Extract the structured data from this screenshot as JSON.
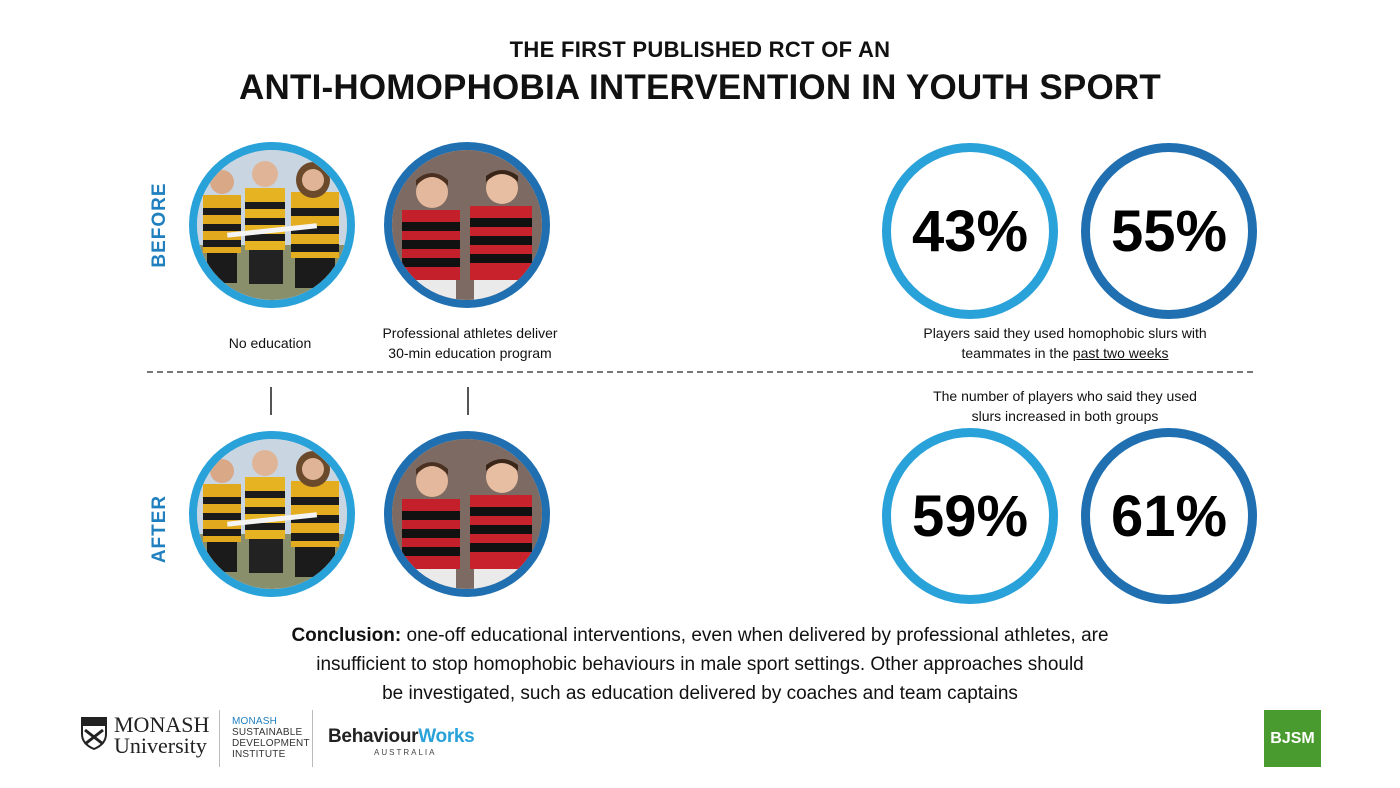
{
  "header": {
    "subtitle": "THE FIRST PUBLISHED RCT OF AN",
    "title": "ANTI-HOMOPHOBIA INTERVENTION IN YOUTH SPORT"
  },
  "labels": {
    "before": "BEFORE",
    "after": "AFTER"
  },
  "groups": {
    "control_caption": "No education",
    "intervention_caption_line1": "Professional athletes deliver",
    "intervention_caption_line2": "30-min education program"
  },
  "stats": {
    "before_control": "43%",
    "before_intervention": "55%",
    "after_control": "59%",
    "after_intervention": "61%",
    "before_note_line1": "Players said they used homophobic slurs with",
    "before_note_line2_prefix": "teammates in the ",
    "before_note_line2_underlined": "past two weeks",
    "after_note_line1": "The number of players who said they used",
    "after_note_line2": "slurs increased in both groups"
  },
  "conclusion": {
    "label": "Conclusion:",
    "line1": " one-off educational interventions, even when delivered by professional athletes, are",
    "line2": "insufficient to stop homophobic behaviours in male sport settings. Other approaches should",
    "line3": "be investigated, such as education delivered by coaches and team captains"
  },
  "footer": {
    "monash_line1": "MONASH",
    "monash_line2": "University",
    "msdi_line1": "MONASH",
    "msdi_line2": "SUSTAINABLE",
    "msdi_line3": "DEVELOPMENT",
    "msdi_line4": "INSTITUTE",
    "bw_part1": "Behaviour",
    "bw_part2": "Works",
    "bw_sub": "AUSTRALIA",
    "bjsm": "BJSM"
  },
  "colors": {
    "light_blue": "#29a1d9",
    "dark_blue": "#1f6fb1",
    "label_blue": "#1f7fbf",
    "bjsm_green": "#4a9b2f"
  }
}
